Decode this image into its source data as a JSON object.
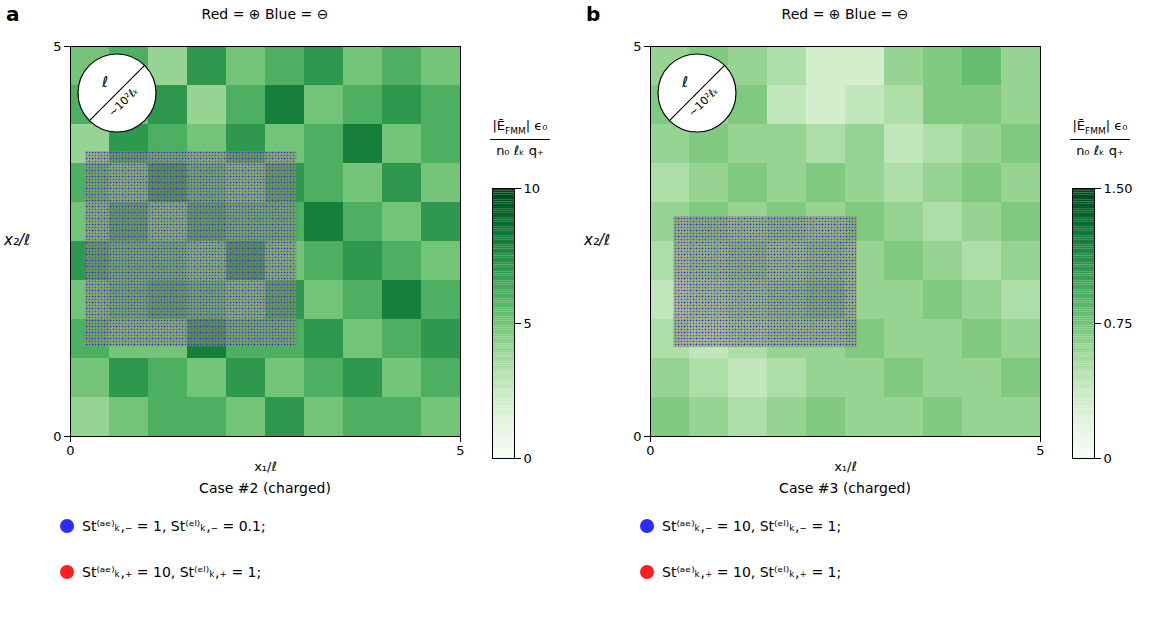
{
  "chart_data": [
    {
      "type": "heatmap",
      "panel": "a",
      "title": "Red = ⊕   Blue = ⊖",
      "caption": "Case #2 (charged)",
      "xlabel": "x₁/ℓ",
      "ylabel": "x₂/ℓ",
      "xlim": [
        0,
        5
      ],
      "ylim": [
        0,
        5
      ],
      "xticks": [
        0,
        5
      ],
      "yticks": [
        0,
        5
      ],
      "cells": [
        [
          5,
          6,
          4,
          7,
          5,
          6,
          7,
          5,
          6,
          5
        ],
        [
          6,
          5,
          7,
          4,
          6,
          8,
          5,
          6,
          7,
          6
        ],
        [
          4,
          7,
          6,
          5,
          7,
          5,
          6,
          8,
          5,
          6
        ],
        [
          6,
          5,
          8,
          6,
          5,
          7,
          6,
          5,
          7,
          5
        ],
        [
          5,
          7,
          5,
          7,
          6,
          6,
          8,
          6,
          5,
          7
        ],
        [
          7,
          6,
          6,
          5,
          8,
          5,
          6,
          7,
          6,
          5
        ],
        [
          5,
          6,
          7,
          6,
          5,
          7,
          5,
          6,
          8,
          6
        ],
        [
          6,
          5,
          5,
          8,
          6,
          6,
          7,
          5,
          6,
          7
        ],
        [
          5,
          7,
          6,
          5,
          7,
          5,
          6,
          7,
          5,
          6
        ],
        [
          4,
          5,
          6,
          6,
          5,
          7,
          5,
          6,
          6,
          5
        ]
      ],
      "colorbar": {
        "range": [
          0,
          10
        ],
        "ticks": [
          0,
          5,
          10
        ],
        "label": {
          "numerator": {
            "text": "|Ē",
            "subscript": "FMM",
            "after": "| ϵ₀"
          },
          "denominator": "n₀ ℓₖ q₊"
        }
      },
      "inset": {
        "x": [
          0.2,
          2.9
        ],
        "y": [
          1.15,
          3.65
        ]
      },
      "scale_marker": {
        "labels": [
          "ℓ",
          "~10²ℓₖ"
        ]
      },
      "series": [
        {
          "name": "St⁽ᵃᵉ⁾ₖ,₋ = 1, St⁽ᵉˡ⁾ₖ,₋ = 0.1;",
          "color": "#2b2bff"
        },
        {
          "name": "St⁽ᵃᵉ⁾ₖ,₊ = 10, St⁽ᵉˡ⁾ₖ,₊ = 1;",
          "color": "#ff1f1f"
        }
      ]
    },
    {
      "type": "heatmap",
      "panel": "b",
      "title": "Red = ⊕   Blue = ⊖",
      "caption": "Case #3 (charged)",
      "xlabel": "x₁/ℓ",
      "ylabel": "x₂/ℓ",
      "xlim": [
        0,
        5
      ],
      "ylim": [
        0,
        5
      ],
      "xticks": [
        0,
        5
      ],
      "yticks": [
        0,
        5
      ],
      "cells": [
        [
          0.6,
          0.7,
          0.6,
          0.5,
          0.3,
          0.3,
          0.6,
          0.7,
          0.8,
          0.6
        ],
        [
          0.7,
          0.6,
          0.7,
          0.4,
          0.3,
          0.4,
          0.5,
          0.7,
          0.7,
          0.6
        ],
        [
          0.6,
          0.7,
          0.6,
          0.6,
          0.5,
          0.6,
          0.4,
          0.5,
          0.6,
          0.7
        ],
        [
          0.5,
          0.6,
          0.7,
          0.6,
          0.7,
          0.6,
          0.5,
          0.6,
          0.7,
          0.6
        ],
        [
          0.6,
          0.7,
          0.6,
          0.7,
          0.6,
          0.7,
          0.6,
          0.5,
          0.6,
          0.7
        ],
        [
          0.5,
          0.6,
          0.7,
          0.6,
          0.7,
          0.6,
          0.7,
          0.6,
          0.5,
          0.6
        ],
        [
          0.4,
          0.5,
          0.6,
          0.7,
          0.8,
          0.6,
          0.6,
          0.7,
          0.6,
          0.5
        ],
        [
          0.5,
          0.4,
          0.5,
          0.6,
          0.6,
          0.7,
          0.6,
          0.6,
          0.7,
          0.6
        ],
        [
          0.6,
          0.5,
          0.4,
          0.5,
          0.6,
          0.6,
          0.7,
          0.6,
          0.6,
          0.7
        ],
        [
          0.7,
          0.6,
          0.5,
          0.6,
          0.7,
          0.6,
          0.6,
          0.7,
          0.6,
          0.6
        ]
      ],
      "colorbar": {
        "range": [
          0,
          1.5
        ],
        "ticks": [
          0,
          0.75,
          {
            "value": 1.5,
            "label": "1.50"
          }
        ],
        "label": {
          "numerator": {
            "text": "|Ē",
            "subscript": "FMM",
            "after": "| ϵ₀"
          },
          "denominator": "n₀ ℓₖ q₊"
        }
      },
      "inset": {
        "x": [
          0.3,
          2.65
        ],
        "y": [
          1.14,
          2.82
        ]
      },
      "scale_marker": {
        "labels": [
          "ℓ",
          "~10²ℓₖ"
        ]
      },
      "series": [
        {
          "name": "St⁽ᵃᵉ⁾ₖ,₋ = 10, St⁽ᵉˡ⁾ₖ,₋ = 1;",
          "color": "#2b2bff"
        },
        {
          "name": "St⁽ᵃᵉ⁾ₖ,₊ = 10, St⁽ᵉˡ⁾ₖ,₊ = 1;",
          "color": "#ff1f1f"
        }
      ]
    }
  ]
}
